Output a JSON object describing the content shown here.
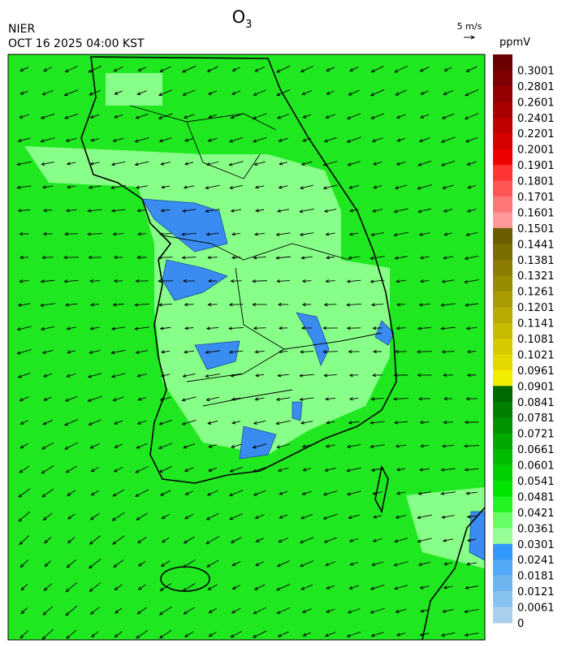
{
  "header": {
    "title": "O",
    "title_subscript": "3",
    "agency": "NIER",
    "datetime": "OCT 16 2025 04:00 KST",
    "wind_scale": "5 m/s"
  },
  "colorbar": {
    "unit": "ppmV",
    "levels": [
      0.3001,
      0.2801,
      0.2601,
      0.2401,
      0.2201,
      0.2001,
      0.1901,
      0.1801,
      0.1701,
      0.1601,
      0.1501,
      0.1441,
      0.1381,
      0.1321,
      0.1261,
      0.1201,
      0.1141,
      0.1081,
      0.1021,
      0.0961,
      0.0901,
      0.0841,
      0.0781,
      0.0721,
      0.0661,
      0.0601,
      0.0541,
      0.0481,
      0.0421,
      0.0361,
      0.0301,
      0.0241,
      0.0181,
      0.0121,
      0.0061,
      0
    ],
    "colors": [
      "#6a0000",
      "#7f0000",
      "#940000",
      "#aa0000",
      "#c00000",
      "#d60000",
      "#ee0000",
      "#ff3333",
      "#ff5555",
      "#ff7777",
      "#ff9999",
      "#6b5e00",
      "#7a6d00",
      "#897c00",
      "#998b00",
      "#a89a00",
      "#b8aa00",
      "#c8ba00",
      "#d7c900",
      "#e5d800",
      "#f2ec00",
      "#006a00",
      "#007f00",
      "#009300",
      "#00a800",
      "#00bc00",
      "#00d000",
      "#00e400",
      "#22f422",
      "#66ff66",
      "#99ff99",
      "#3399ff",
      "#55a8f5",
      "#6eb5f0",
      "#88c2ee",
      "#a8d0ee"
    ]
  }
}
